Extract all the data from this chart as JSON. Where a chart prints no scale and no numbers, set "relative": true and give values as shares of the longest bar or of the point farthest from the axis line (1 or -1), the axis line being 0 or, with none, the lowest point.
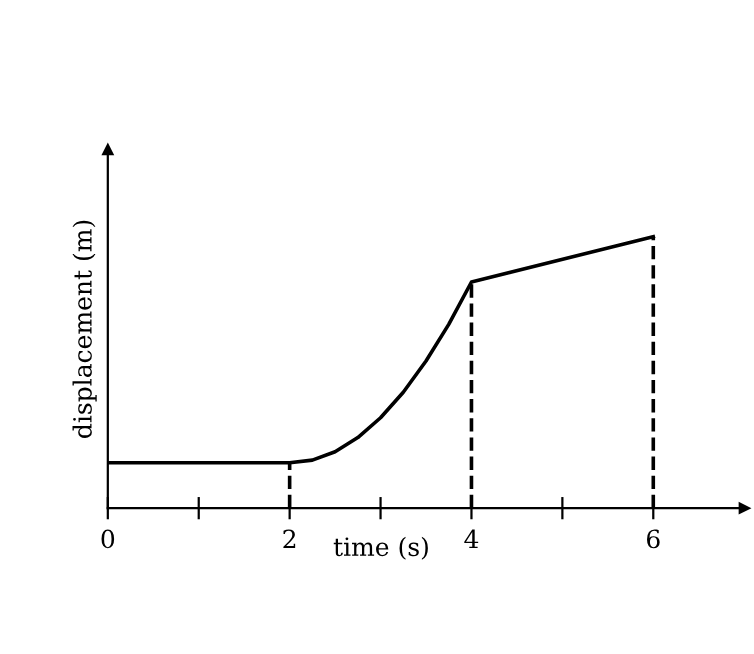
{
  "chart_data": {
    "type": "line",
    "relative": true,
    "xlabel": "time (s)",
    "ylabel": "displacement (m)",
    "x": [
      0,
      2,
      2.25,
      2.5,
      2.75,
      3,
      3.25,
      3.5,
      3.75,
      4,
      6
    ],
    "series": [
      {
        "color": "#000000",
        "values": [
          0.167,
          0.167,
          0.177,
          0.208,
          0.26,
          0.333,
          0.427,
          0.542,
          0.677,
          0.833,
          1.0
        ]
      }
    ],
    "xlim": [
      0,
      7
    ],
    "xticks": [
      0,
      {
        "value": 1,
        "label": null
      },
      2,
      {
        "value": 3,
        "label": null
      },
      4,
      {
        "value": 5,
        "label": null
      },
      6
    ],
    "ref_lines": [
      {
        "axis": "x",
        "value": 2,
        "line_style": "dashed",
        "color": "#000000"
      },
      {
        "axis": "x",
        "value": 4,
        "line_style": "dashed",
        "color": "#000000"
      },
      {
        "axis": "x",
        "value": 6,
        "line_style": "dashed",
        "color": "#000000"
      }
    ],
    "grid": false,
    "legend": false,
    "marker": "none",
    "line_style": "solid"
  }
}
